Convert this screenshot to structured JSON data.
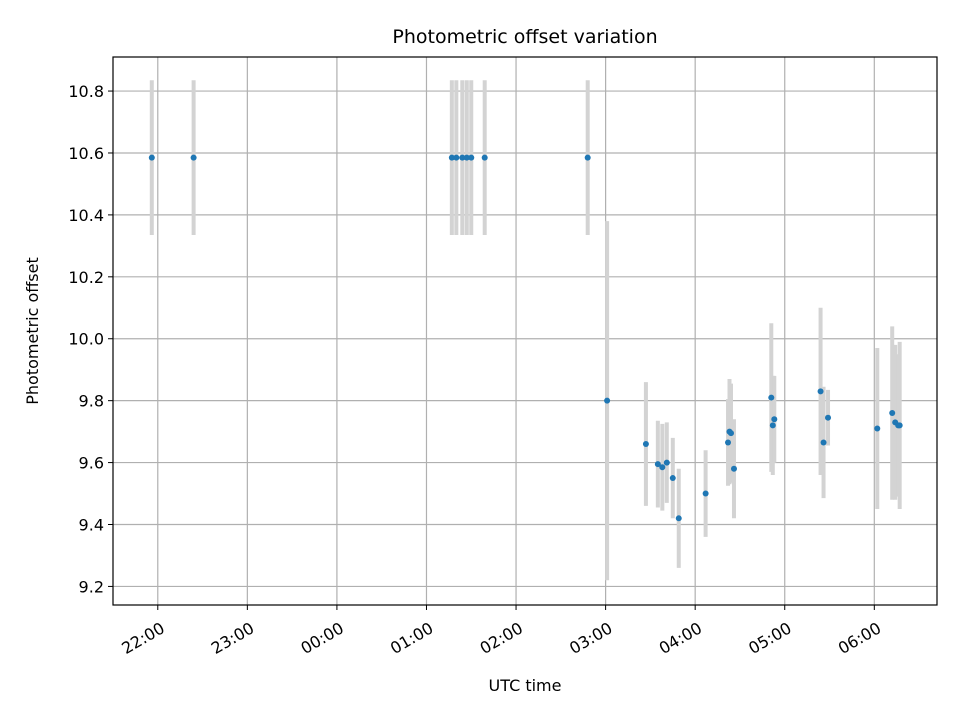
{
  "chart_data": {
    "type": "scatter",
    "title": "Photometric offset variation",
    "xlabel": "UTC time",
    "ylabel": "Photometric offset",
    "x_reference_date": "",
    "xlim": [
      "21:30",
      "06:42"
    ],
    "ylim": [
      9.14,
      10.91
    ],
    "grid": true,
    "x_ticks": [
      "22:00",
      "23:00",
      "00:00",
      "01:00",
      "02:00",
      "03:00",
      "04:00",
      "05:00",
      "06:00"
    ],
    "y_ticks": [
      "9.2",
      "9.4",
      "9.6",
      "9.8",
      "10.0",
      "10.2",
      "10.4",
      "10.6",
      "10.8"
    ],
    "marker_color": "#1f77b4",
    "errorbar_color": "#d3d3d3",
    "points": [
      {
        "t": "21:56",
        "y": 10.585,
        "err": 0.25
      },
      {
        "t": "22:24",
        "y": 10.585,
        "err": 0.25
      },
      {
        "t": "01:17",
        "y": 10.585,
        "err": 0.25
      },
      {
        "t": "01:20",
        "y": 10.585,
        "err": 0.25
      },
      {
        "t": "01:24",
        "y": 10.585,
        "err": 0.25
      },
      {
        "t": "01:27",
        "y": 10.585,
        "err": 0.25
      },
      {
        "t": "01:30",
        "y": 10.585,
        "err": 0.25
      },
      {
        "t": "01:39",
        "y": 10.585,
        "err": 0.25
      },
      {
        "t": "02:48",
        "y": 10.585,
        "err": 0.25
      },
      {
        "t": "03:01",
        "y": 9.8,
        "err": 0.58
      },
      {
        "t": "03:27",
        "y": 9.66,
        "err": 0.2
      },
      {
        "t": "03:35",
        "y": 9.595,
        "err": 0.14
      },
      {
        "t": "03:38",
        "y": 9.585,
        "err": 0.14
      },
      {
        "t": "03:41",
        "y": 9.6,
        "err": 0.13
      },
      {
        "t": "03:45",
        "y": 9.55,
        "err": 0.13
      },
      {
        "t": "03:49",
        "y": 9.42,
        "err": 0.16
      },
      {
        "t": "04:07",
        "y": 9.5,
        "err": 0.14
      },
      {
        "t": "04:22",
        "y": 9.665,
        "err": 0.14
      },
      {
        "t": "04:23",
        "y": 9.7,
        "err": 0.17
      },
      {
        "t": "04:24",
        "y": 9.695,
        "err": 0.16
      },
      {
        "t": "04:26",
        "y": 9.58,
        "err": 0.16
      },
      {
        "t": "04:51",
        "y": 9.81,
        "err": 0.24
      },
      {
        "t": "04:52",
        "y": 9.72,
        "err": 0.16
      },
      {
        "t": "04:53",
        "y": 9.74,
        "err": 0.14
      },
      {
        "t": "05:24",
        "y": 9.83,
        "err": 0.27
      },
      {
        "t": "05:26",
        "y": 9.665,
        "err": 0.18
      },
      {
        "t": "05:29",
        "y": 9.745,
        "err": 0.09
      },
      {
        "t": "06:02",
        "y": 9.71,
        "err": 0.26
      },
      {
        "t": "06:12",
        "y": 9.76,
        "err": 0.28
      },
      {
        "t": "06:14",
        "y": 9.73,
        "err": 0.25
      },
      {
        "t": "06:16",
        "y": 9.72,
        "err": 0.23
      },
      {
        "t": "06:17",
        "y": 9.72,
        "err": 0.27
      }
    ]
  }
}
